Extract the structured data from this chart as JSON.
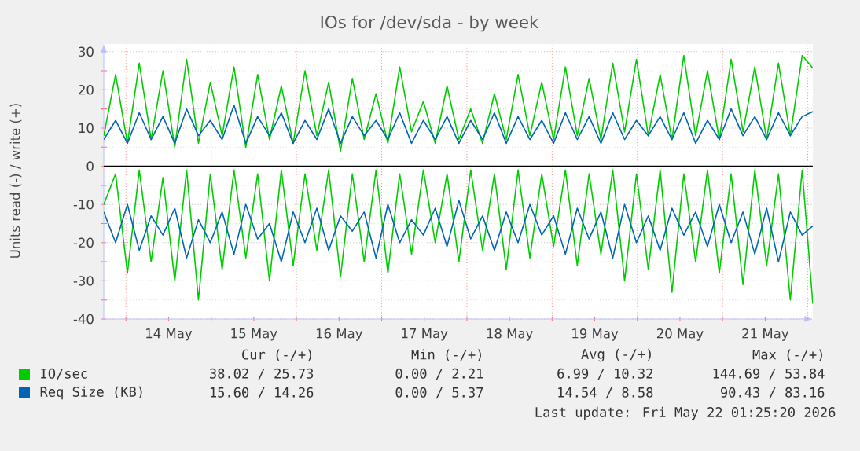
{
  "chart_data": {
    "type": "line",
    "title": "IOs for /dev/sda - by week",
    "ylabel": "Units read (-) / write (+)",
    "x": [
      "2026-05-13T17:45",
      "2026-05-13T21:05",
      "2026-05-14T00:25",
      "2026-05-14T03:45",
      "2026-05-14T07:05",
      "2026-05-14T10:25",
      "2026-05-14T13:45",
      "2026-05-14T17:05",
      "2026-05-14T20:25",
      "2026-05-14T23:45",
      "2026-05-15T03:05",
      "2026-05-15T06:25",
      "2026-05-15T09:45",
      "2026-05-15T13:05",
      "2026-05-15T16:25",
      "2026-05-15T19:45",
      "2026-05-15T23:05",
      "2026-05-16T02:25",
      "2026-05-16T05:45",
      "2026-05-16T09:05",
      "2026-05-16T12:25",
      "2026-05-16T15:45",
      "2026-05-16T19:05",
      "2026-05-16T22:25",
      "2026-05-17T01:45",
      "2026-05-17T05:05",
      "2026-05-17T08:25",
      "2026-05-17T11:45",
      "2026-05-17T15:05",
      "2026-05-17T18:25",
      "2026-05-17T21:45",
      "2026-05-18T01:05",
      "2026-05-18T04:25",
      "2026-05-18T07:45",
      "2026-05-18T11:05",
      "2026-05-18T14:25",
      "2026-05-18T17:45",
      "2026-05-18T21:05",
      "2026-05-19T00:25",
      "2026-05-19T03:45",
      "2026-05-19T07:05",
      "2026-05-19T10:25",
      "2026-05-19T13:45",
      "2026-05-19T17:05",
      "2026-05-19T20:25",
      "2026-05-19T23:45",
      "2026-05-20T03:05",
      "2026-05-20T06:25",
      "2026-05-20T09:45",
      "2026-05-20T13:05",
      "2026-05-20T16:25",
      "2026-05-20T19:45",
      "2026-05-20T23:05",
      "2026-05-21T02:25",
      "2026-05-21T05:45",
      "2026-05-21T09:05",
      "2026-05-21T12:25",
      "2026-05-21T15:45",
      "2026-05-21T19:05",
      "2026-05-21T22:25",
      "2026-05-22T01:25"
    ],
    "series": [
      {
        "name": "IO/sec",
        "color": "#00cc00",
        "values": [
          8,
          24,
          6,
          27,
          7,
          25,
          5,
          28,
          6,
          22,
          8,
          26,
          5,
          24,
          7,
          21,
          6,
          25,
          8,
          22,
          4,
          23,
          7,
          19,
          6,
          26,
          9,
          17,
          6,
          21,
          7,
          15,
          6,
          19,
          7,
          24,
          8,
          22,
          7,
          26,
          8,
          23,
          7,
          27,
          9,
          28,
          8,
          24,
          7,
          29,
          8,
          25,
          7,
          28,
          9,
          26,
          7,
          27,
          8,
          29,
          25.7
        ]
      },
      {
        "color": "#00cc00",
        "values": [
          -10,
          -2,
          -28,
          -1,
          -25,
          -3,
          -30,
          -1,
          -35,
          -2,
          -27,
          -1,
          -24,
          -2,
          -30,
          -1,
          -26,
          -2,
          -22,
          -1,
          -29,
          -2,
          -25,
          -1,
          -28,
          -2,
          -23,
          -1,
          -20,
          -2,
          -25,
          -1,
          -22,
          -2,
          -27,
          -1,
          -24,
          -2,
          -21,
          -1,
          -26,
          -2,
          -23,
          -1,
          -30,
          -2,
          -27,
          -1,
          -33,
          -2,
          -25,
          -1,
          -28,
          -2,
          -31,
          -1,
          -26,
          -2,
          -35,
          -1,
          -36
        ]
      },
      {
        "name": "Req Size (KB)",
        "color": "#0066b3",
        "values": [
          7,
          12,
          6,
          14,
          7,
          13,
          6,
          15,
          8,
          12,
          7,
          16,
          6,
          13,
          8,
          14,
          6,
          12,
          7,
          15,
          6,
          13,
          8,
          12,
          7,
          14,
          6,
          12,
          7,
          13,
          6,
          12,
          7,
          14,
          6,
          13,
          7,
          12,
          6,
          14,
          7,
          13,
          6,
          14,
          7,
          12,
          8,
          13,
          7,
          14,
          6,
          12,
          7,
          15,
          8,
          13,
          7,
          14,
          8,
          13,
          14.3
        ]
      },
      {
        "color": "#0066b3",
        "values": [
          -12,
          -20,
          -10,
          -22,
          -13,
          -18,
          -11,
          -24,
          -14,
          -20,
          -12,
          -23,
          -10,
          -19,
          -15,
          -25,
          -12,
          -20,
          -11,
          -22,
          -13,
          -17,
          -12,
          -24,
          -10,
          -20,
          -14,
          -18,
          -11,
          -21,
          -9,
          -19,
          -13,
          -22,
          -12,
          -20,
          -10,
          -18,
          -13,
          -23,
          -11,
          -19,
          -12,
          -24,
          -10,
          -20,
          -13,
          -22,
          -11,
          -18,
          -12,
          -21,
          -10,
          -20,
          -12,
          -23,
          -11,
          -25,
          -12,
          -18,
          -15.6
        ]
      }
    ],
    "xlim": [
      "2026-05-13T17:45",
      "2026-05-22T01:25"
    ],
    "xticks": [
      {
        "value": "2026-05-14",
        "label": null
      },
      {
        "value": "2026-05-14T12:00",
        "label": "14 May"
      },
      {
        "value": "2026-05-15",
        "label": null
      },
      {
        "value": "2026-05-15T12:00",
        "label": "15 May"
      },
      {
        "value": "2026-05-16",
        "label": null
      },
      {
        "value": "2026-05-16T12:00",
        "label": "16 May"
      },
      {
        "value": "2026-05-17",
        "label": null
      },
      {
        "value": "2026-05-17T12:00",
        "label": "17 May"
      },
      {
        "value": "2026-05-18",
        "label": null
      },
      {
        "value": "2026-05-18T12:00",
        "label": "18 May"
      },
      {
        "value": "2026-05-19",
        "label": null
      },
      {
        "value": "2026-05-19T12:00",
        "label": "19 May"
      },
      {
        "value": "2026-05-20",
        "label": null
      },
      {
        "value": "2026-05-20T12:00",
        "label": "20 May"
      },
      {
        "value": "2026-05-21",
        "label": null
      },
      {
        "value": "2026-05-21T12:00",
        "label": "21 May"
      },
      {
        "value": "2026-05-22",
        "label": null
      }
    ],
    "ylim": [
      -40,
      32
    ],
    "yticks": [
      -40,
      -30,
      -20,
      -10,
      0,
      10,
      20,
      30
    ],
    "ref_lines": [
      {
        "axis": "y",
        "value": 0,
        "color": "#000000"
      }
    ],
    "grid": true,
    "legend": "bottom",
    "annotations": [
      "Cur (-/+)",
      "Min (-/+)",
      "Avg (-/+)",
      "Max (-/+)",
      "38.02 / 25.73",
      "0.00 /  2.21",
      "6.99 / 10.32",
      "144.69 / 53.84",
      "15.60 / 14.26",
      "0.00 /  5.37",
      "14.54 /  8.58",
      "90.43 / 83.16",
      "Last update: Fri May 22 01:25:20 2026"
    ]
  }
}
